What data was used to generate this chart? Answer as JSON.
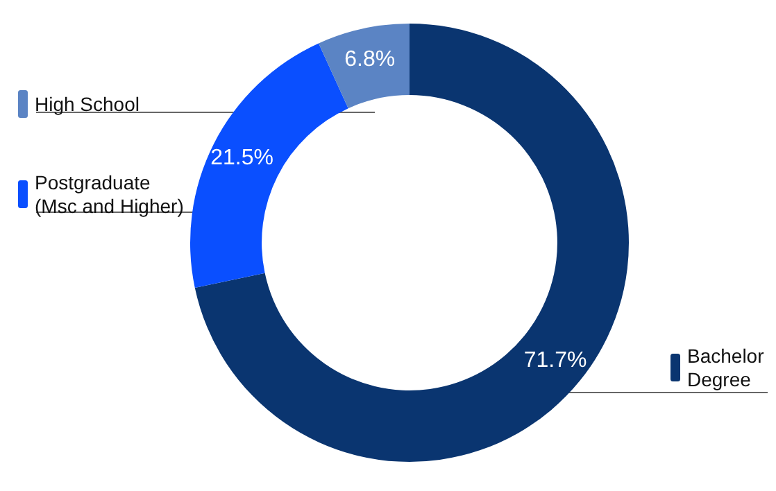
{
  "chart_data": {
    "type": "donut",
    "categories": [
      "Bachelor Degree",
      "Postgraduate (Msc and Higher)",
      "High School"
    ],
    "values": [
      71.7,
      21.5,
      6.8
    ],
    "colors": [
      "#0a3570",
      "#0a4fff",
      "#5b84c4"
    ],
    "value_labels": [
      "71.7%",
      "21.5%",
      "6.8%"
    ],
    "legend": "left"
  }
}
